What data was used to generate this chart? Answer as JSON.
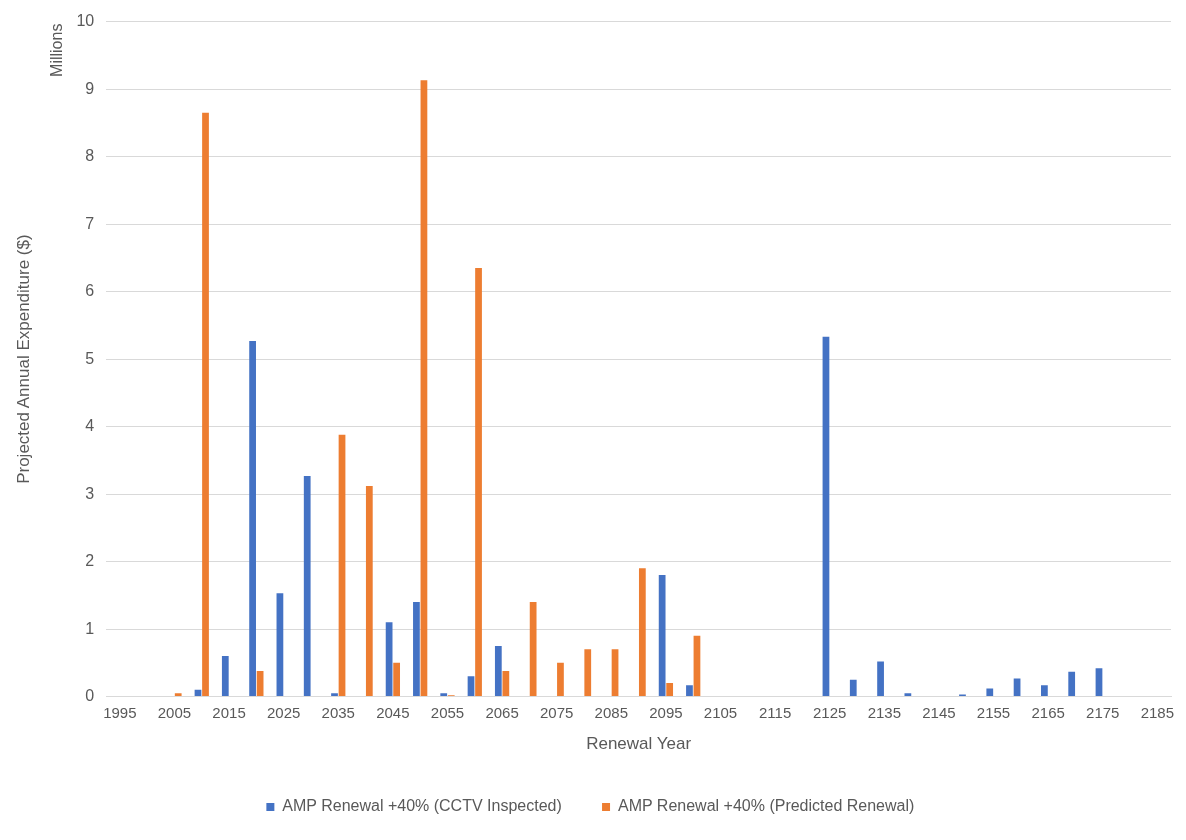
{
  "chart_data": {
    "type": "bar",
    "xlabel": "Renewal Year",
    "ylabel": "Projected Annual Expenditure ($)",
    "annotations": [
      "Millions"
    ],
    "categories": [
      "1995",
      null,
      "2005",
      null,
      "2015",
      null,
      "2025",
      null,
      "2035",
      null,
      "2045",
      null,
      "2055",
      null,
      "2065",
      null,
      "2075",
      null,
      "2085",
      null,
      "2095",
      null,
      "2105",
      null,
      "2115",
      null,
      "2125",
      null,
      "2135",
      null,
      "2145",
      null,
      "2155",
      null,
      "2165",
      null,
      "2175",
      null,
      "2185"
    ],
    "series": [
      {
        "name": "AMP Renewal +40% (CCTV Inspected)",
        "color": "#4472c4",
        "values": [
          null,
          null,
          null,
          0.1,
          0.6,
          5.27,
          1.53,
          3.27,
          0.05,
          null,
          1.1,
          1.4,
          0.05,
          0.3,
          0.75,
          null,
          null,
          null,
          null,
          null,
          1.8,
          0.17,
          null,
          null,
          null,
          null,
          5.33,
          0.25,
          0.52,
          0.05,
          null,
          0.03,
          0.12,
          0.27,
          0.17,
          0.37,
          0.42,
          null,
          null
        ]
      },
      {
        "name": "AMP Renewal +40% (Predicted Renewal)",
        "color": "#ed7d31",
        "values": [
          null,
          null,
          0.05,
          8.65,
          null,
          0.38,
          null,
          null,
          3.88,
          3.12,
          0.5,
          9.13,
          0.02,
          6.35,
          0.38,
          1.4,
          0.5,
          0.7,
          0.7,
          1.9,
          0.2,
          0.9,
          null,
          null,
          null,
          null,
          null,
          null,
          null,
          null,
          null,
          null,
          null,
          null,
          null,
          null,
          null,
          null,
          null
        ]
      }
    ],
    "ylim": [
      0,
      10
    ],
    "yticks": [
      0,
      1,
      2,
      3,
      4,
      5,
      6,
      7,
      8,
      9,
      10
    ],
    "grid": "y",
    "legend": "bottom"
  }
}
